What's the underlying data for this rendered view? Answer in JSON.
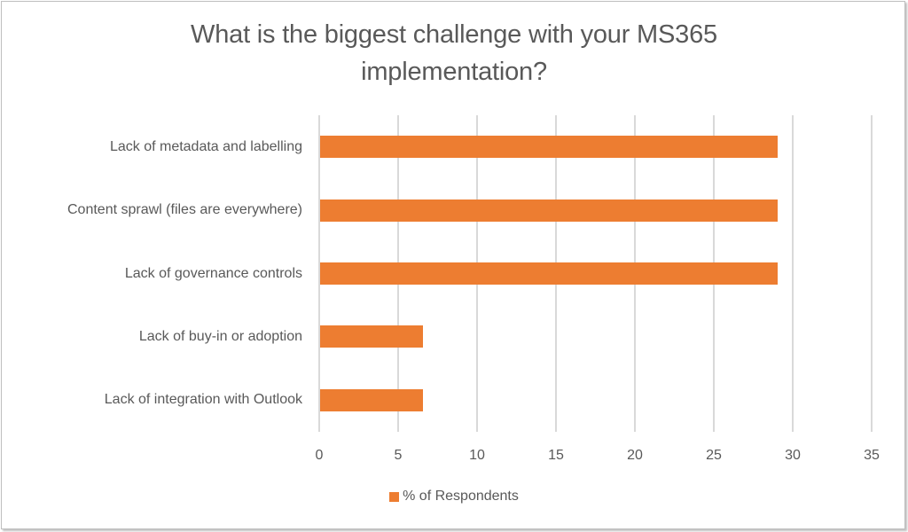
{
  "chart_data": {
    "type": "bar",
    "orientation": "horizontal",
    "title": "What is the biggest challenge with your MS365 implementation?",
    "title_lines": [
      "What is the biggest challenge with your MS365",
      "implementation?"
    ],
    "categories": [
      "Lack of metadata and labelling",
      "Content sprawl (files are everywhere)",
      "Lack of governance controls",
      "Lack of buy-in or adoption",
      "Lack of integration with Outlook"
    ],
    "series": [
      {
        "name": "% of Respondents",
        "color": "#ED7D31",
        "values": [
          29,
          29,
          29,
          6.5,
          6.5
        ]
      }
    ],
    "xlabel": "",
    "ylabel": "",
    "xlim": [
      0,
      35
    ],
    "xticks": [
      "0",
      "5",
      "10",
      "15",
      "20",
      "25",
      "30",
      "35"
    ],
    "grid": "vertical",
    "legend_position": "bottom"
  }
}
